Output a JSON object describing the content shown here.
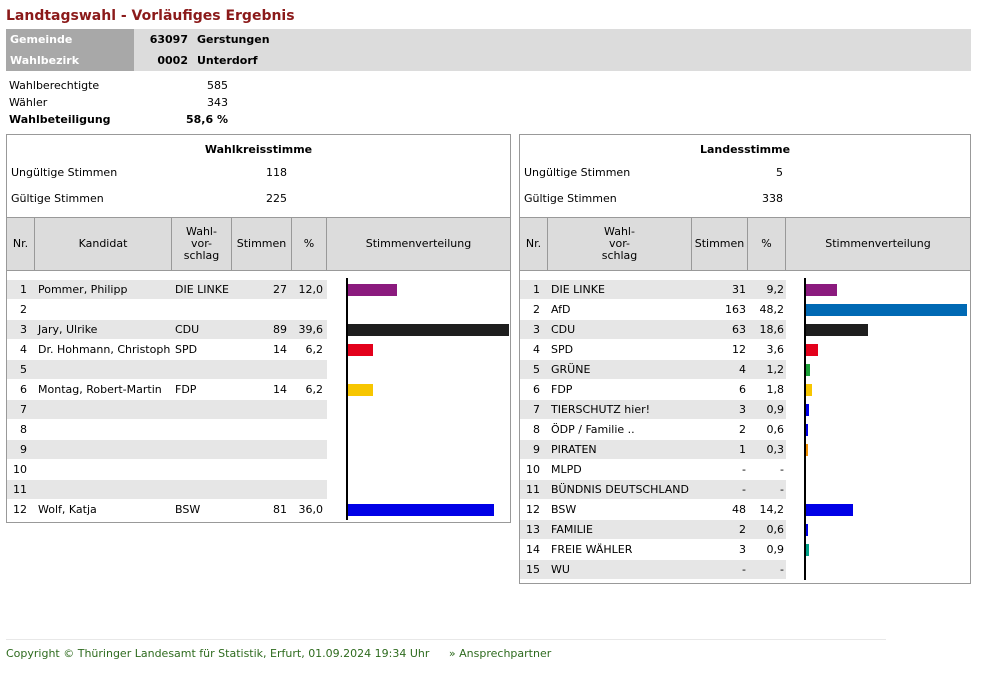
{
  "title": "Landtagswahl - Vorläufiges Ergebnis",
  "gemeinde": {
    "label": "Gemeinde",
    "nr": "63097",
    "name": "Gerstungen"
  },
  "wahlbezirk": {
    "label": "Wahlbezirk",
    "nr": "0002",
    "name": "Unterdorf"
  },
  "stats": [
    {
      "label": "Wahlberechtigte",
      "value": "585",
      "bold": false
    },
    {
      "label": "Wähler",
      "value": "343",
      "bold": false
    },
    {
      "label": "Wahlbeteiligung",
      "value": "58,6 %",
      "bold": true
    }
  ],
  "wks": {
    "title": "Wahlkreisstimme",
    "ungueltig_label": "Ungültige Stimmen",
    "ungueltig": "118",
    "gueltig_label": "Gültige Stimmen",
    "gueltig": "225",
    "headers": [
      "Nr.",
      "Kandidat",
      "Wahl-\nvor-\nschlag",
      "Stimmen",
      "%",
      "Stimmenverteilung"
    ],
    "rows": [
      {
        "nr": "1",
        "kandidat": "Pommer, Philipp",
        "partei": "DIE LINKE",
        "stimmen": "27",
        "pct": "12,0",
        "value": 12.0,
        "color": "#8b1a7e"
      },
      {
        "nr": "2",
        "kandidat": "",
        "partei": "",
        "stimmen": "",
        "pct": "",
        "value": 0,
        "color": ""
      },
      {
        "nr": "3",
        "kandidat": "Jary, Ulrike",
        "partei": "CDU",
        "stimmen": "89",
        "pct": "39,6",
        "value": 39.6,
        "color": "#1e1e1e"
      },
      {
        "nr": "4",
        "kandidat": "Dr. Hohmann, Christoph",
        "partei": "SPD",
        "stimmen": "14",
        "pct": "6,2",
        "value": 6.2,
        "color": "#e3001b"
      },
      {
        "nr": "5",
        "kandidat": "",
        "partei": "",
        "stimmen": "",
        "pct": "",
        "value": 0,
        "color": ""
      },
      {
        "nr": "6",
        "kandidat": "Montag, Robert-Martin",
        "partei": "FDP",
        "stimmen": "14",
        "pct": "6,2",
        "value": 6.2,
        "color": "#f7c600"
      },
      {
        "nr": "7",
        "kandidat": "",
        "partei": "",
        "stimmen": "",
        "pct": "",
        "value": 0,
        "color": ""
      },
      {
        "nr": "8",
        "kandidat": "",
        "partei": "",
        "stimmen": "",
        "pct": "",
        "value": 0,
        "color": ""
      },
      {
        "nr": "9",
        "kandidat": "",
        "partei": "",
        "stimmen": "",
        "pct": "",
        "value": 0,
        "color": ""
      },
      {
        "nr": "10",
        "kandidat": "",
        "partei": "",
        "stimmen": "",
        "pct": "",
        "value": 0,
        "color": ""
      },
      {
        "nr": "11",
        "kandidat": "",
        "partei": "",
        "stimmen": "",
        "pct": "",
        "value": 0,
        "color": ""
      },
      {
        "nr": "12",
        "kandidat": "Wolf, Katja",
        "partei": "BSW",
        "stimmen": "81",
        "pct": "36,0",
        "value": 36.0,
        "color": "#0000e6"
      }
    ]
  },
  "ls": {
    "title": "Landesstimme",
    "ungueltig_label": "Ungültige Stimmen",
    "ungueltig": "5",
    "gueltig_label": "Gültige Stimmen",
    "gueltig": "338",
    "headers": [
      "Nr.",
      "Wahl-\nvor-\nschlag",
      "Stimmen",
      "%",
      "Stimmenverteilung"
    ],
    "rows": [
      {
        "nr": "1",
        "partei": "DIE LINKE",
        "stimmen": "31",
        "pct": "9,2",
        "value": 9.2,
        "color": "#8b1a7e"
      },
      {
        "nr": "2",
        "partei": "AfD",
        "stimmen": "163",
        "pct": "48,2",
        "value": 48.2,
        "color": "#0069b4"
      },
      {
        "nr": "3",
        "partei": "CDU",
        "stimmen": "63",
        "pct": "18,6",
        "value": 18.6,
        "color": "#1e1e1e"
      },
      {
        "nr": "4",
        "partei": "SPD",
        "stimmen": "12",
        "pct": "3,6",
        "value": 3.6,
        "color": "#e3001b"
      },
      {
        "nr": "5",
        "partei": "GRÜNE",
        "stimmen": "4",
        "pct": "1,2",
        "value": 1.2,
        "color": "#1aa037"
      },
      {
        "nr": "6",
        "partei": "FDP",
        "stimmen": "6",
        "pct": "1,8",
        "value": 1.8,
        "color": "#f7c600"
      },
      {
        "nr": "7",
        "partei": "TIERSCHUTZ hier!",
        "stimmen": "3",
        "pct": "0,9",
        "value": 0.9,
        "color": "#0000e6"
      },
      {
        "nr": "8",
        "partei": "ÖDP / Familie ..",
        "stimmen": "2",
        "pct": "0,6",
        "value": 0.6,
        "color": "#0000e6"
      },
      {
        "nr": "9",
        "partei": "PIRATEN",
        "stimmen": "1",
        "pct": "0,3",
        "value": 0.3,
        "color": "#f39200"
      },
      {
        "nr": "10",
        "partei": "MLPD",
        "stimmen": "-",
        "pct": "-",
        "value": 0,
        "color": ""
      },
      {
        "nr": "11",
        "partei": "BÜNDNIS DEUTSCHLAND",
        "stimmen": "-",
        "pct": "-",
        "value": 0,
        "color": ""
      },
      {
        "nr": "12",
        "partei": "BSW",
        "stimmen": "48",
        "pct": "14,2",
        "value": 14.2,
        "color": "#0000e6"
      },
      {
        "nr": "13",
        "partei": "FAMILIE",
        "stimmen": "2",
        "pct": "0,6",
        "value": 0.6,
        "color": "#0000e6"
      },
      {
        "nr": "14",
        "partei": "FREIE WÄHLER",
        "stimmen": "3",
        "pct": "0,9",
        "value": 0.9,
        "color": "#00a087"
      },
      {
        "nr": "15",
        "partei": "WU",
        "stimmen": "-",
        "pct": "-",
        "value": 0,
        "color": ""
      }
    ]
  },
  "footer": {
    "copyright": "Copyright © Thüringer Landesamt für Statistik, Erfurt, 01.09.2024 19:34 Uhr",
    "link": "» Ansprechpartner"
  }
}
